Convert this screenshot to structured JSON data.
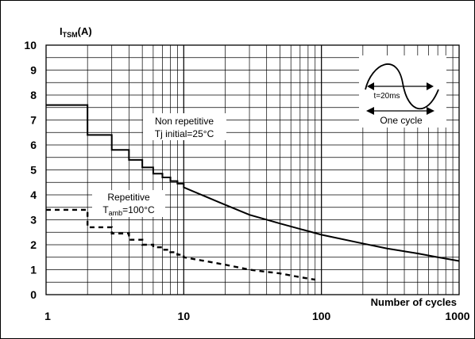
{
  "chart_data": {
    "type": "line",
    "title": "",
    "ylabel_main": "I",
    "ylabel_sub": "TSM",
    "ylabel_unit": "(A)",
    "xlabel": "Number of cycles",
    "x_scale": "log",
    "xlim": [
      1,
      1000
    ],
    "ylim": [
      0,
      10
    ],
    "x_ticks": [
      "1",
      "10",
      "100",
      "1000"
    ],
    "y_ticks": [
      "0",
      "1",
      "2",
      "3",
      "4",
      "5",
      "6",
      "7",
      "8",
      "9",
      "10"
    ],
    "grid": true,
    "series": [
      {
        "name": "Non repetitive Tj initial=25°C",
        "style": "solid",
        "x": [
          1,
          2,
          3,
          4,
          5,
          6,
          7,
          8,
          9,
          10,
          20,
          30,
          50,
          100,
          200,
          300,
          500,
          700,
          1000
        ],
        "y": [
          7.6,
          6.4,
          5.8,
          5.4,
          5.1,
          4.85,
          4.7,
          4.55,
          4.45,
          4.3,
          3.6,
          3.2,
          2.85,
          2.4,
          2.05,
          1.85,
          1.65,
          1.5,
          1.35
        ]
      },
      {
        "name": "Repetitive Tamb=100°C",
        "style": "dashed",
        "x": [
          1,
          2,
          3,
          4,
          5,
          6,
          7,
          8,
          9,
          10,
          20,
          30,
          50,
          70,
          90
        ],
        "y": [
          3.4,
          2.7,
          2.45,
          2.2,
          2.0,
          1.9,
          1.8,
          1.7,
          1.6,
          1.5,
          1.2,
          1.0,
          0.85,
          0.7,
          0.6
        ]
      }
    ],
    "annotations": {
      "non_repetitive_line1": "Non repetitive",
      "non_repetitive_line2": "Tj initial=25°C",
      "repetitive_line1": "Repetitive",
      "repetitive_line2_main": "T",
      "repetitive_line2_sub": "amb",
      "repetitive_line2_rest": "=100°C",
      "inset_period": "t=20ms",
      "inset_caption": "One cycle"
    }
  }
}
